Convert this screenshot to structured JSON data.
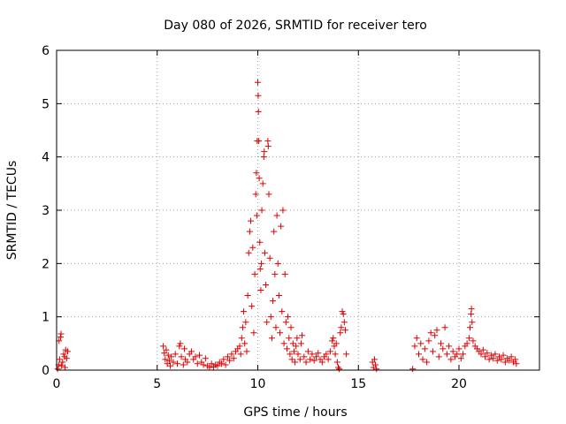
{
  "chart_data": {
    "type": "scatter",
    "title": "Day 080 of 2026, SRMTID for receiver tero",
    "xlabel": "GPS time / hours",
    "ylabel": "SRMTID / TECUs",
    "xlim": [
      0,
      24
    ],
    "ylim": [
      0,
      6
    ],
    "xticks": [
      0,
      5,
      10,
      15,
      20
    ],
    "yticks": [
      0,
      1,
      2,
      3,
      4,
      5,
      6
    ],
    "grid": true,
    "marker": "+",
    "color": "#dd0000",
    "series": [
      {
        "points": [
          [
            0.05,
            0.02
          ],
          [
            0.1,
            0.1
          ],
          [
            0.12,
            0.55
          ],
          [
            0.15,
            0.2
          ],
          [
            0.2,
            0.62
          ],
          [
            0.22,
            0.68
          ],
          [
            0.25,
            0.08
          ],
          [
            0.3,
            0.15
          ],
          [
            0.35,
            0.3
          ],
          [
            0.4,
            0.25
          ],
          [
            0.42,
            0.05
          ],
          [
            0.45,
            0.38
          ],
          [
            0.5,
            0.22
          ],
          [
            0.55,
            0.35
          ],
          [
            5.3,
            0.45
          ],
          [
            5.35,
            0.32
          ],
          [
            5.4,
            0.2
          ],
          [
            5.45,
            0.38
          ],
          [
            5.5,
            0.12
          ],
          [
            5.55,
            0.28
          ],
          [
            5.6,
            0.18
          ],
          [
            5.65,
            0.08
          ],
          [
            5.7,
            0.25
          ],
          [
            5.8,
            0.15
          ],
          [
            5.9,
            0.3
          ],
          [
            6.0,
            0.12
          ],
          [
            6.1,
            0.45
          ],
          [
            6.15,
            0.5
          ],
          [
            6.2,
            0.25
          ],
          [
            6.3,
            0.1
          ],
          [
            6.35,
            0.4
          ],
          [
            6.4,
            0.2
          ],
          [
            6.5,
            0.15
          ],
          [
            6.6,
            0.3
          ],
          [
            6.7,
            0.35
          ],
          [
            6.8,
            0.2
          ],
          [
            6.9,
            0.25
          ],
          [
            7.0,
            0.12
          ],
          [
            7.1,
            0.28
          ],
          [
            7.2,
            0.15
          ],
          [
            7.3,
            0.1
          ],
          [
            7.4,
            0.22
          ],
          [
            7.5,
            0.08
          ],
          [
            7.6,
            0.05
          ],
          [
            7.7,
            0.12
          ],
          [
            7.8,
            0.06
          ],
          [
            7.9,
            0.1
          ],
          [
            8.0,
            0.08
          ],
          [
            8.1,
            0.15
          ],
          [
            8.2,
            0.12
          ],
          [
            8.3,
            0.2
          ],
          [
            8.4,
            0.1
          ],
          [
            8.5,
            0.25
          ],
          [
            8.6,
            0.18
          ],
          [
            8.7,
            0.3
          ],
          [
            8.8,
            0.22
          ],
          [
            8.9,
            0.35
          ],
          [
            9.0,
            0.4
          ],
          [
            9.1,
            0.45
          ],
          [
            9.15,
            0.3
          ],
          [
            9.2,
            0.6
          ],
          [
            9.25,
            0.8
          ],
          [
            9.3,
            1.1
          ],
          [
            9.35,
            0.5
          ],
          [
            9.4,
            0.9
          ],
          [
            9.45,
            0.35
          ],
          [
            9.5,
            1.4
          ],
          [
            9.55,
            2.2
          ],
          [
            9.6,
            2.6
          ],
          [
            9.65,
            2.8
          ],
          [
            9.7,
            1.2
          ],
          [
            9.75,
            2.3
          ],
          [
            9.8,
            0.7
          ],
          [
            9.85,
            1.8
          ],
          [
            9.9,
            3.3
          ],
          [
            9.93,
            3.7
          ],
          [
            9.95,
            2.9
          ],
          [
            9.97,
            4.3
          ],
          [
            10.0,
            5.4
          ],
          [
            10.02,
            5.15
          ],
          [
            10.03,
            4.85
          ],
          [
            10.05,
            4.3
          ],
          [
            10.07,
            3.6
          ],
          [
            10.1,
            2.4
          ],
          [
            10.12,
            1.9
          ],
          [
            10.15,
            1.5
          ],
          [
            10.18,
            2.0
          ],
          [
            10.2,
            3.0
          ],
          [
            10.25,
            3.5
          ],
          [
            10.3,
            4.0
          ],
          [
            10.32,
            4.1
          ],
          [
            10.35,
            2.2
          ],
          [
            10.4,
            1.6
          ],
          [
            10.45,
            0.9
          ],
          [
            10.5,
            4.3
          ],
          [
            10.52,
            4.2
          ],
          [
            10.55,
            3.3
          ],
          [
            10.6,
            2.1
          ],
          [
            10.65,
            1.0
          ],
          [
            10.7,
            0.6
          ],
          [
            10.75,
            1.3
          ],
          [
            10.8,
            2.6
          ],
          [
            10.85,
            1.8
          ],
          [
            10.9,
            0.8
          ],
          [
            10.95,
            2.9
          ],
          [
            11.0,
            2.0
          ],
          [
            11.05,
            1.4
          ],
          [
            11.1,
            0.7
          ],
          [
            11.15,
            2.7
          ],
          [
            11.2,
            1.1
          ],
          [
            11.25,
            3.0
          ],
          [
            11.3,
            0.5
          ],
          [
            11.35,
            1.8
          ],
          [
            11.4,
            0.9
          ],
          [
            11.45,
            0.4
          ],
          [
            11.5,
            1.0
          ],
          [
            11.55,
            0.6
          ],
          [
            11.6,
            0.3
          ],
          [
            11.65,
            0.8
          ],
          [
            11.7,
            0.2
          ],
          [
            11.75,
            0.5
          ],
          [
            11.8,
            0.35
          ],
          [
            11.85,
            0.15
          ],
          [
            11.9,
            0.45
          ],
          [
            11.95,
            0.6
          ],
          [
            12.0,
            0.3
          ],
          [
            12.1,
            0.2
          ],
          [
            12.15,
            0.5
          ],
          [
            12.2,
            0.65
          ],
          [
            12.3,
            0.25
          ],
          [
            12.4,
            0.15
          ],
          [
            12.5,
            0.35
          ],
          [
            12.6,
            0.2
          ],
          [
            12.7,
            0.3
          ],
          [
            12.8,
            0.18
          ],
          [
            12.9,
            0.25
          ],
          [
            13.0,
            0.32
          ],
          [
            13.1,
            0.2
          ],
          [
            13.2,
            0.15
          ],
          [
            13.3,
            0.25
          ],
          [
            13.4,
            0.3
          ],
          [
            13.5,
            0.2
          ],
          [
            13.6,
            0.35
          ],
          [
            13.7,
            0.55
          ],
          [
            13.75,
            0.6
          ],
          [
            13.8,
            0.45
          ],
          [
            13.85,
            0.3
          ],
          [
            13.9,
            0.5
          ],
          [
            13.95,
            0.15
          ],
          [
            14.0,
            0.05
          ],
          [
            14.05,
            0.02
          ],
          [
            14.1,
            0.7
          ],
          [
            14.15,
            0.8
          ],
          [
            14.2,
            1.1
          ],
          [
            14.25,
            1.05
          ],
          [
            14.3,
            0.9
          ],
          [
            14.35,
            0.75
          ],
          [
            14.4,
            0.3
          ],
          [
            15.7,
            0.15
          ],
          [
            15.75,
            0.05
          ],
          [
            15.8,
            0.2
          ],
          [
            15.85,
            0.1
          ],
          [
            15.9,
            0.02
          ],
          [
            17.7,
            0.02
          ],
          [
            17.8,
            0.45
          ],
          [
            17.9,
            0.6
          ],
          [
            18.0,
            0.3
          ],
          [
            18.1,
            0.5
          ],
          [
            18.2,
            0.2
          ],
          [
            18.3,
            0.4
          ],
          [
            18.4,
            0.15
          ],
          [
            18.5,
            0.55
          ],
          [
            18.6,
            0.7
          ],
          [
            18.7,
            0.35
          ],
          [
            18.8,
            0.65
          ],
          [
            18.9,
            0.75
          ],
          [
            19.0,
            0.25
          ],
          [
            19.1,
            0.5
          ],
          [
            19.2,
            0.4
          ],
          [
            19.3,
            0.8
          ],
          [
            19.4,
            0.3
          ],
          [
            19.5,
            0.45
          ],
          [
            19.6,
            0.2
          ],
          [
            19.7,
            0.35
          ],
          [
            19.8,
            0.25
          ],
          [
            19.9,
            0.3
          ],
          [
            20.0,
            0.4
          ],
          [
            20.1,
            0.22
          ],
          [
            20.2,
            0.3
          ],
          [
            20.3,
            0.45
          ],
          [
            20.4,
            0.5
          ],
          [
            20.5,
            0.6
          ],
          [
            20.55,
            0.8
          ],
          [
            20.6,
            1.05
          ],
          [
            20.62,
            1.15
          ],
          [
            20.65,
            0.9
          ],
          [
            20.7,
            0.55
          ],
          [
            20.8,
            0.45
          ],
          [
            20.9,
            0.4
          ],
          [
            21.0,
            0.35
          ],
          [
            21.1,
            0.3
          ],
          [
            21.2,
            0.38
          ],
          [
            21.3,
            0.25
          ],
          [
            21.4,
            0.32
          ],
          [
            21.5,
            0.2
          ],
          [
            21.6,
            0.28
          ],
          [
            21.7,
            0.22
          ],
          [
            21.8,
            0.3
          ],
          [
            21.9,
            0.18
          ],
          [
            22.0,
            0.25
          ],
          [
            22.1,
            0.2
          ],
          [
            22.2,
            0.28
          ],
          [
            22.3,
            0.15
          ],
          [
            22.4,
            0.22
          ],
          [
            22.5,
            0.18
          ],
          [
            22.6,
            0.25
          ],
          [
            22.7,
            0.15
          ],
          [
            22.8,
            0.2
          ],
          [
            22.85,
            0.12
          ]
        ]
      }
    ]
  }
}
